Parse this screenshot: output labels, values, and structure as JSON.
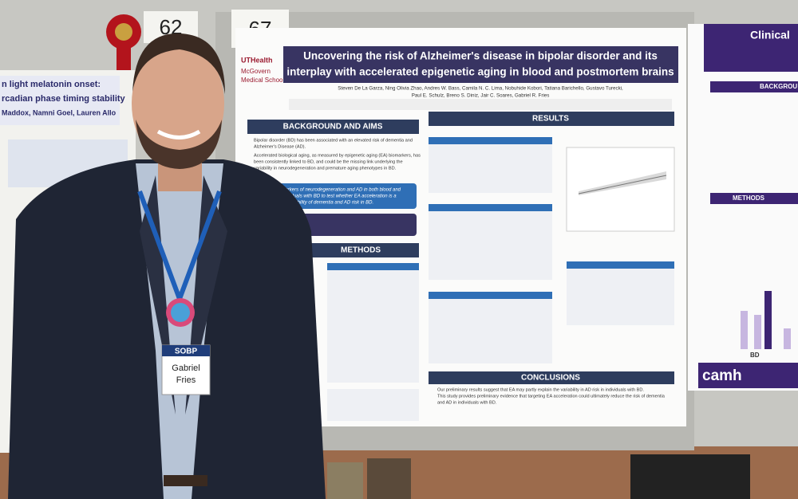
{
  "signs": [
    "62",
    "67"
  ],
  "left_poster": {
    "lines": [
      "n light melatonin onset:",
      "rcadian phase timing stability",
      "Maddox, Namni Goel, Lauren Allo"
    ]
  },
  "main_poster": {
    "institution": [
      "UTHealth",
      "McGovern",
      "Medical School"
    ],
    "title_lines": [
      "Uncovering the risk of Alzheimer's disease in bipolar disorder and its",
      "interplay with accelerated epigenetic aging in blood and postmortem brains"
    ],
    "authors": [
      "Steven De La Garza, Ning Olivia Zhao, Andres W. Bass, Camila N. C. Lima, Nobuhide Kobori, Tatiana Barichello, Gustavo Turecki,",
      "Paul E. Schulz, Breno S. Diniz, Jair C. Soares, Gabriel R. Fries"
    ],
    "sections": [
      "BACKGROUND AND AIMS",
      "RESULTS",
      "METHODS",
      "CONCLUSIONS"
    ],
    "background": [
      "Bipolar disorder (BD) has been associated with an elevated risk of dementia and",
      "Alzheimer's Disease (AD).",
      "Accelerated biological aging, as measured by epigenetic aging (EA) biomarkers, has",
      "been consistently linked to BD, and could be the missing link underlying the",
      "variability in neurodegeneration and premature aging phenotypes in BD."
    ],
    "aim": [
      "To assess biomarkers of neurodegeneration and AD in both blood and",
      "the brains of individuals with BD to test whether EA acceleration is a",
      "potential driving variability of dementia and AD risk in BD."
    ],
    "conclusions": [
      "Our preliminary results suggest that EA may partly explain the variability in AD risk in individuals with BD.",
      "This study provides preliminary evidence that targeting EA acceleration could ultimately reduce the risk of dementia",
      "and AD in individuals with BD."
    ]
  },
  "right_poster": {
    "title": "Clinical",
    "sections": [
      "BACKGROU",
      "METHODS"
    ],
    "axis_label": "BD",
    "logo": "camh"
  },
  "badge": {
    "org": "SOBP",
    "first": "Gabriel",
    "last": "Fries"
  }
}
